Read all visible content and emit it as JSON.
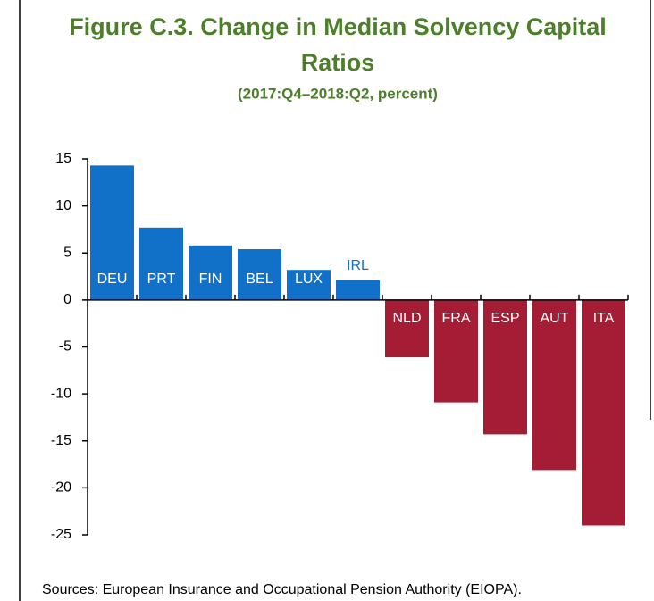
{
  "chart_data": {
    "type": "bar",
    "title_lines": [
      "Figure C.3. Change in Median Solvency Capital",
      "Ratios"
    ],
    "subtitle": "(2017:Q4–2018:Q2, percent)",
    "categories": [
      "DEU",
      "PRT",
      "FIN",
      "BEL",
      "LUX",
      "IRL",
      "NLD",
      "FRA",
      "ESP",
      "AUT",
      "ITA"
    ],
    "values": [
      14.3,
      7.7,
      5.8,
      5.4,
      3.2,
      2.1,
      -6.1,
      -10.9,
      -14.3,
      -18.1,
      -24.0
    ],
    "color_positive": "#1170c8",
    "color_negative": "#a51c35",
    "ylim": [
      -25,
      15
    ],
    "yticks": [
      -25,
      -20,
      -15,
      -10,
      -5,
      0,
      5,
      10,
      15
    ],
    "source": "Sources: European Insurance and Occupational Pension Authority (EIOPA)."
  }
}
